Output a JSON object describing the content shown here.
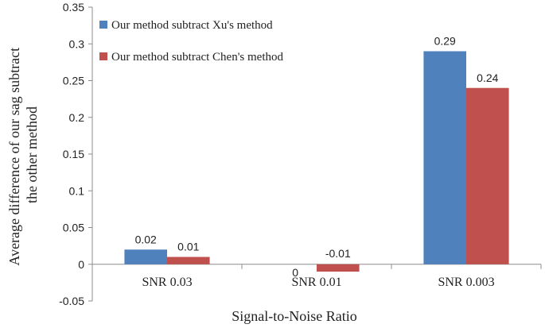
{
  "chart_data": {
    "type": "bar",
    "categories": [
      "SNR 0.03",
      "SNR 0.01",
      "SNR 0.003"
    ],
    "series": [
      {
        "name": "Our method subtract Xu's method",
        "values": [
          0.02,
          0,
          0.29
        ],
        "labels": [
          "0.02",
          "0",
          "0.29"
        ],
        "color": "#4f81bd"
      },
      {
        "name": "Our method subtract Chen's method",
        "values": [
          0.01,
          -0.01,
          0.24
        ],
        "labels": [
          "0.01",
          "-0.01",
          "0.24"
        ],
        "color": "#c0504d"
      }
    ],
    "xlabel": "Signal-to-Noise Ratio",
    "ylabel_lines": [
      "Average difference of our sag  subtract",
      "the other method"
    ],
    "ylim": [
      -0.05,
      0.35
    ],
    "yticks": [
      -0.05,
      0,
      0.05,
      0.1,
      0.15,
      0.2,
      0.25,
      0.3,
      0.35
    ],
    "ytick_labels": [
      "-0.05",
      "0",
      "0.05",
      "0.1",
      "0.15",
      "0.2",
      "0.25",
      "0.3",
      "0.35"
    ],
    "grid": false,
    "legend_position": "top-left"
  }
}
